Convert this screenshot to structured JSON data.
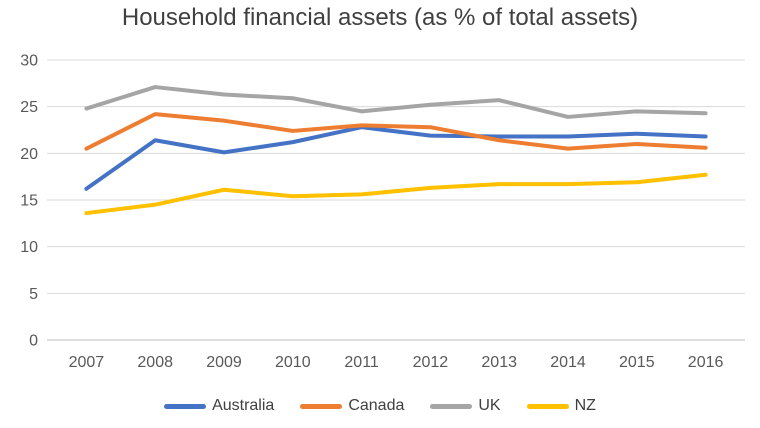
{
  "title": "Household financial assets (as % of total assets)",
  "chart_data": {
    "type": "line",
    "title": "Household financial assets (as % of total assets)",
    "categories": [
      "2007",
      "2008",
      "2009",
      "2010",
      "2011",
      "2012",
      "2013",
      "2014",
      "2015",
      "2016"
    ],
    "series": [
      {
        "name": "Australia",
        "color": "#4472C4",
        "values": [
          16.2,
          21.4,
          20.1,
          21.2,
          22.8,
          21.9,
          21.8,
          21.8,
          22.1,
          21.8
        ]
      },
      {
        "name": "Canada",
        "color": "#ED7D31",
        "values": [
          20.5,
          24.2,
          23.5,
          22.4,
          23.0,
          22.8,
          21.4,
          20.5,
          21.0,
          20.6
        ]
      },
      {
        "name": "UK",
        "color": "#A5A5A5",
        "values": [
          24.8,
          27.1,
          26.3,
          25.9,
          24.5,
          25.2,
          25.7,
          23.9,
          24.5,
          24.3
        ]
      },
      {
        "name": "NZ",
        "color": "#FFC000",
        "values": [
          13.6,
          14.5,
          16.1,
          15.4,
          15.6,
          16.3,
          16.7,
          16.7,
          16.9,
          17.7
        ]
      }
    ],
    "xlabel": "",
    "ylabel": "",
    "ylim": [
      0,
      30
    ],
    "yticks": [
      0,
      5,
      10,
      15,
      20,
      25,
      30
    ],
    "grid": true,
    "legend_position": "bottom",
    "styles": {
      "gridline_color": "#D9D9D9",
      "axis_line_color": "#BFBFBF",
      "tick_label_color": "#595959",
      "title_color": "#404040",
      "line_width": 4
    }
  }
}
